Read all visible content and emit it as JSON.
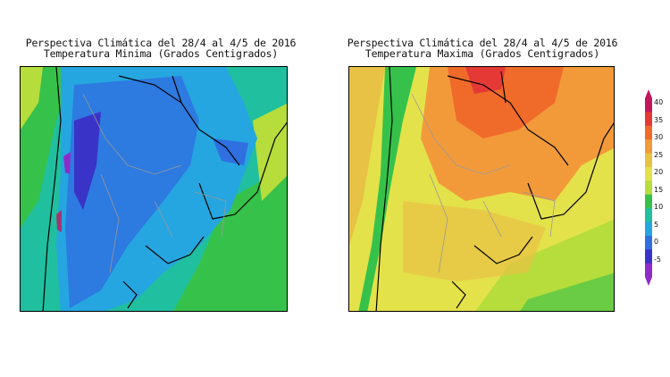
{
  "panels": [
    {
      "title_line1": "Perspectiva Climática del 28/4 al 4/5 de 2016",
      "title_line2": "Temperatura Minima (Grados Centigrados)"
    },
    {
      "title_line1": "Perspectiva Climática del 28/4 al 4/5 de 2016",
      "title_line2": "Temperatura Maxima (Grados Centigrados)"
    }
  ],
  "colorbar": {
    "labels": [
      "40",
      "35",
      "30",
      "25",
      "20",
      "15",
      "10",
      "5",
      "0",
      "-5"
    ],
    "colors": [
      "#c2185b",
      "#e53935",
      "#f06a2a",
      "#f29a3a",
      "#e8c245",
      "#e4e24a",
      "#b6dd3c",
      "#36c24a",
      "#1fbf9f",
      "#25a6e0",
      "#2f6fe0",
      "#3a33c8",
      "#8e2bc9"
    ]
  }
}
